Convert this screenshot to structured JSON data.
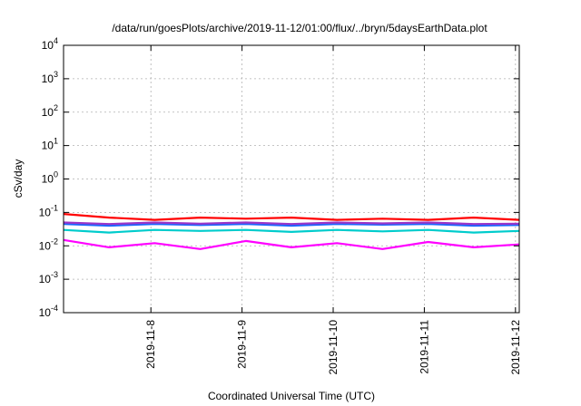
{
  "chart_data": {
    "type": "line",
    "title": "/data/run/goesPlots/archive/2019-11-12/01:00/flux/../bryn/5daysEarthData.plot",
    "xlabel": "Coordinated Universal Time (UTC)",
    "ylabel": "cSv/day",
    "yscale": "log",
    "ylim": [
      0.0001,
      10000
    ],
    "xlim": [
      "2019-11-07 01:00",
      "2019-11-12 01:00"
    ],
    "y_ticks": [
      {
        "base": "10",
        "exp": "-4",
        "value": 0.0001
      },
      {
        "base": "10",
        "exp": "-3",
        "value": 0.001
      },
      {
        "base": "10",
        "exp": "-2",
        "value": 0.01
      },
      {
        "base": "10",
        "exp": "-1",
        "value": 0.1
      },
      {
        "base": "10",
        "exp": "0",
        "value": 1
      },
      {
        "base": "10",
        "exp": "1",
        "value": 10
      },
      {
        "base": "10",
        "exp": "2",
        "value": 100
      },
      {
        "base": "10",
        "exp": "3",
        "value": 1000
      },
      {
        "base": "10",
        "exp": "4",
        "value": 10000
      }
    ],
    "x_ticks": [
      {
        "label": "2019-11-8",
        "value": "2019-11-08"
      },
      {
        "label": "2019-11-9",
        "value": "2019-11-09"
      },
      {
        "label": "2019-11-10",
        "value": "2019-11-10"
      },
      {
        "label": "2019-11-11",
        "value": "2019-11-11"
      },
      {
        "label": "2019-11-12",
        "value": "2019-11-12"
      }
    ],
    "grid": true,
    "series": [
      {
        "color": "#ff0000",
        "x": [
          "2019-11-07 01:00",
          "2019-11-07 13:00",
          "2019-11-08 01:00",
          "2019-11-08 13:00",
          "2019-11-09 01:00",
          "2019-11-09 13:00",
          "2019-11-10 01:00",
          "2019-11-10 13:00",
          "2019-11-11 01:00",
          "2019-11-11 13:00",
          "2019-11-12 01:00"
        ],
        "y": [
          0.09,
          0.07,
          0.06,
          0.07,
          0.065,
          0.07,
          0.06,
          0.065,
          0.06,
          0.07,
          0.06
        ]
      },
      {
        "color": "#00cccc",
        "x": [
          "2019-11-07 01:00",
          "2019-11-07 13:00",
          "2019-11-08 01:00",
          "2019-11-08 13:00",
          "2019-11-09 01:00",
          "2019-11-09 13:00",
          "2019-11-10 01:00",
          "2019-11-10 13:00",
          "2019-11-11 01:00",
          "2019-11-11 13:00",
          "2019-11-12 01:00"
        ],
        "y": [
          0.03,
          0.025,
          0.03,
          0.028,
          0.03,
          0.026,
          0.03,
          0.027,
          0.03,
          0.025,
          0.028
        ]
      },
      {
        "color": "#1a66ff",
        "x": [
          "2019-11-07 01:00",
          "2019-11-07 13:00",
          "2019-11-08 01:00",
          "2019-11-08 13:00",
          "2019-11-09 01:00",
          "2019-11-09 13:00",
          "2019-11-10 01:00",
          "2019-11-10 13:00",
          "2019-11-11 01:00",
          "2019-11-11 13:00",
          "2019-11-12 01:00"
        ],
        "y": [
          0.045,
          0.04,
          0.045,
          0.042,
          0.045,
          0.04,
          0.045,
          0.043,
          0.045,
          0.04,
          0.042
        ]
      },
      {
        "color": "#9a35c8",
        "x": [
          "2019-11-07 01:00",
          "2019-11-07 13:00",
          "2019-11-08 01:00",
          "2019-11-08 13:00",
          "2019-11-09 01:00",
          "2019-11-09 13:00",
          "2019-11-10 01:00",
          "2019-11-10 13:00",
          "2019-11-11 01:00",
          "2019-11-11 13:00",
          "2019-11-12 01:00"
        ],
        "y": [
          0.05,
          0.045,
          0.05,
          0.046,
          0.05,
          0.045,
          0.05,
          0.047,
          0.05,
          0.045,
          0.046
        ]
      },
      {
        "color": "#ff00ff",
        "x": [
          "2019-11-07 01:00",
          "2019-11-07 13:00",
          "2019-11-08 01:00",
          "2019-11-08 13:00",
          "2019-11-09 01:00",
          "2019-11-09 13:00",
          "2019-11-10 01:00",
          "2019-11-10 13:00",
          "2019-11-11 01:00",
          "2019-11-11 13:00",
          "2019-11-12 01:00"
        ],
        "y": [
          0.015,
          0.009,
          0.012,
          0.008,
          0.014,
          0.009,
          0.012,
          0.008,
          0.013,
          0.009,
          0.011
        ]
      }
    ]
  }
}
